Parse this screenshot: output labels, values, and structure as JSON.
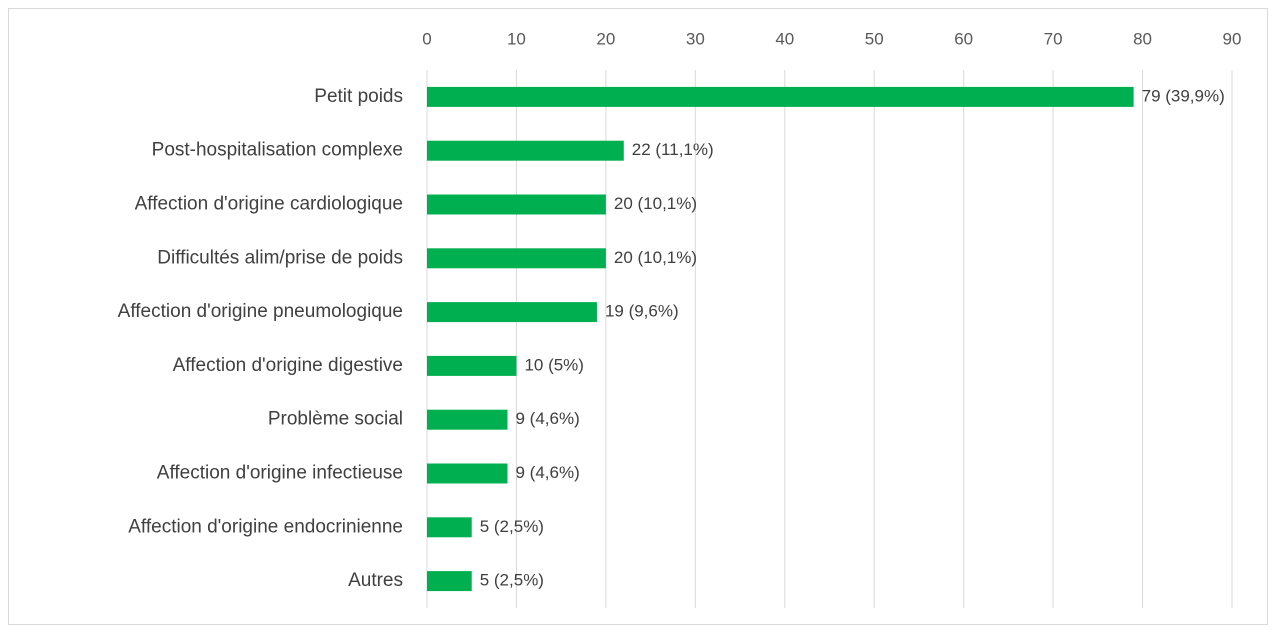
{
  "chart_data": {
    "type": "bar",
    "orientation": "horizontal",
    "categories": [
      "Petit poids",
      "Post-hospitalisation complexe",
      "Affection d'origine cardiologique",
      "Difficultés alim/prise de poids",
      "Affection d'origine pneumologique",
      "Affection d'origine digestive",
      "Problème social",
      "Affection d'origine infectieuse",
      "Affection d'origine endocrinienne",
      "Autres"
    ],
    "values": [
      79,
      22,
      20,
      20,
      19,
      10,
      9,
      9,
      5,
      5
    ],
    "value_labels": [
      "79 (39,9%)",
      "22 (11,1%)",
      "20 (10,1%)",
      "20 (10,1%)",
      "19 (9,6%)",
      "10 (5%)",
      "9 (4,6%)",
      "9 (4,6%)",
      "5 (2,5%)",
      "5 (2,5%)"
    ],
    "color": "#00b050",
    "xlim": [
      0,
      90
    ],
    "xticks": [
      0,
      10,
      20,
      30,
      40,
      50,
      60,
      70,
      80,
      90
    ],
    "grid": true
  }
}
